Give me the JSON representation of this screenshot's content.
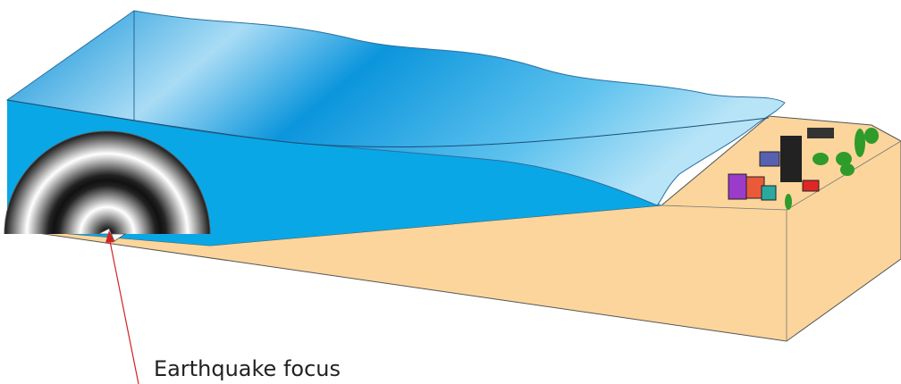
{
  "annotation": {
    "label": "Earthquake focus"
  }
}
